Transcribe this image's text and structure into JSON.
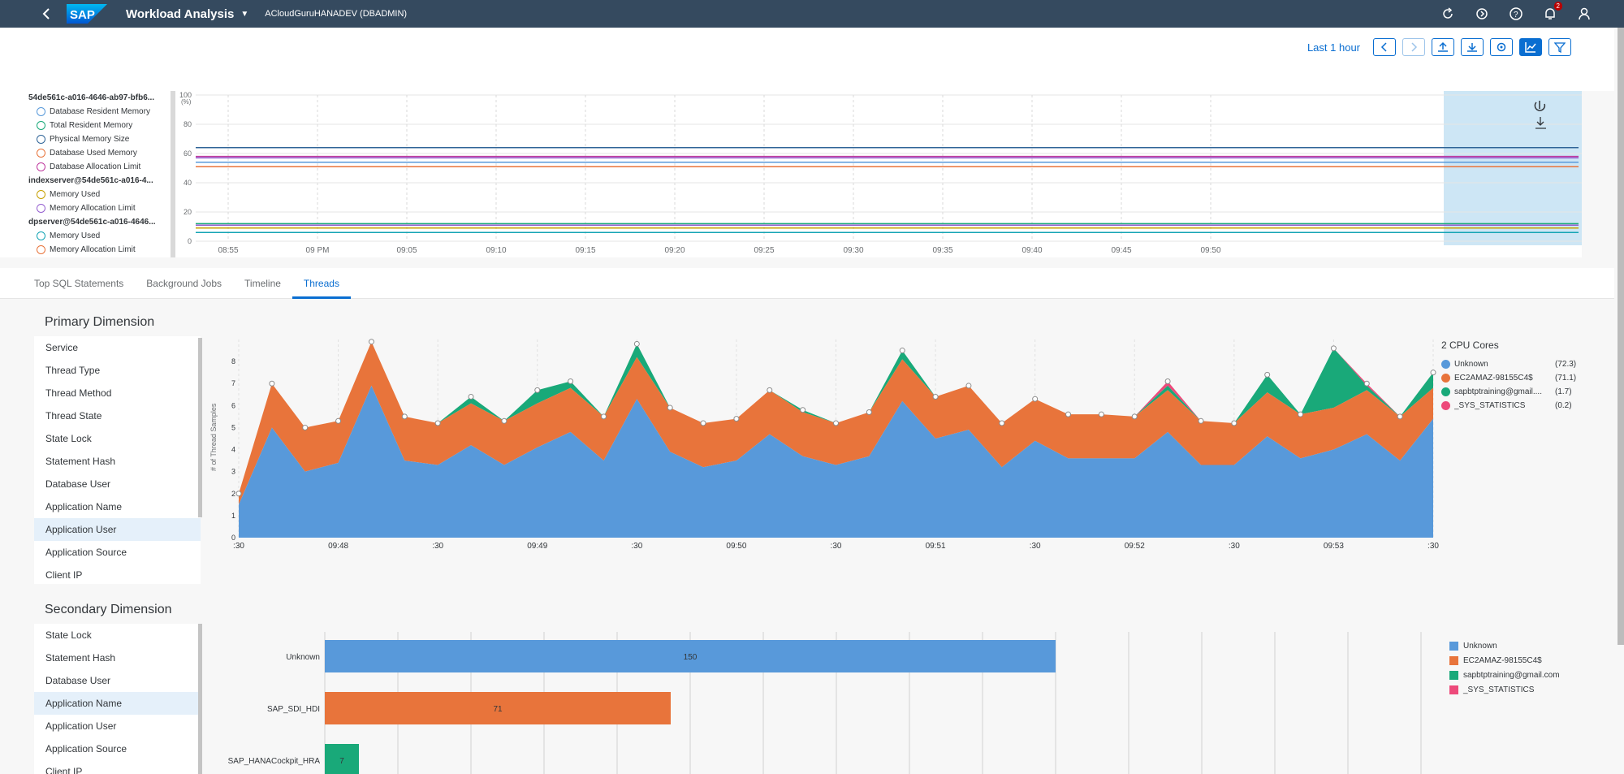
{
  "shell": {
    "app_title": "Workload Analysis",
    "system": "ACloudGuruHANADEV (DBADMIN)",
    "notifications_count": "2"
  },
  "toolbar": {
    "time_range": "Last 1 hour"
  },
  "monitor_legend": {
    "groups": [
      {
        "head": "54de561c-a016-4646-ab97-bfb6...",
        "items": [
          {
            "label": "Database Resident Memory",
            "color": "#5899da"
          },
          {
            "label": "Total Resident Memory",
            "color": "#19a979"
          },
          {
            "label": "Physical Memory Size",
            "color": "#2f6497"
          },
          {
            "label": "Database Used Memory",
            "color": "#e8743b"
          },
          {
            "label": "Database Allocation Limit",
            "color": "#bf399e"
          }
        ]
      },
      {
        "head": "indexserver@54de561c-a016-4...",
        "items": [
          {
            "label": "Memory Used",
            "color": "#c7a000"
          },
          {
            "label": "Memory Allocation Limit",
            "color": "#945ecf"
          }
        ]
      },
      {
        "head": "dpserver@54de561c-a016-4646...",
        "items": [
          {
            "label": "Memory Used",
            "color": "#13a4b4"
          },
          {
            "label": "Memory Allocation Limit",
            "color": "#e8743b"
          }
        ]
      }
    ]
  },
  "monitor_chart": {
    "y_unit": "(%)",
    "y_ticks": [
      "100",
      "80",
      "60",
      "40",
      "20",
      "0"
    ],
    "x_ticks": [
      "08:55",
      "09 PM",
      "09:05",
      "09:10",
      "09:15",
      "09:20",
      "09:25",
      "09:30",
      "09:35",
      "09:40",
      "09:45",
      "09:50"
    ]
  },
  "tabs": [
    "Top SQL Statements",
    "Background Jobs",
    "Timeline",
    "Threads"
  ],
  "primary": {
    "title": "Primary Dimension",
    "items": [
      "Service",
      "Thread Type",
      "Thread Method",
      "Thread State",
      "State Lock",
      "Statement Hash",
      "Database User",
      "Application Name",
      "Application User",
      "Application Source",
      "Client IP"
    ],
    "selected": "Application User"
  },
  "secondary": {
    "title": "Secondary Dimension",
    "items": [
      "State Lock",
      "Statement Hash",
      "Database User",
      "Application Name",
      "Application User",
      "Application Source",
      "Client IP"
    ],
    "selected": "Application Name"
  },
  "cpu_legend": {
    "title": "2 CPU Cores",
    "items": [
      {
        "name": "Unknown",
        "value": "(72.3)",
        "color": "#5899da"
      },
      {
        "name": "EC2AMAZ-98155C4$",
        "value": "(71.1)",
        "color": "#e8743b"
      },
      {
        "name": "sapbtptraining@gmail....",
        "value": "(1.7)",
        "color": "#19a979"
      },
      {
        "name": "_SYS_STATISTICS",
        "value": "(0.2)",
        "color": "#ed4a7b"
      }
    ]
  },
  "chart_data": [
    {
      "type": "line",
      "title": "",
      "ylabel": "(%)",
      "ylim": [
        0,
        100
      ],
      "x": [
        "08:55",
        "09 PM",
        "09:05",
        "09:10",
        "09:15",
        "09:20",
        "09:25",
        "09:30",
        "09:35",
        "09:40",
        "09:45",
        "09:50"
      ],
      "series": [
        {
          "name": "Physical Memory Size",
          "value": 64,
          "color": "#2f6497"
        },
        {
          "name": "Database Allocation Limit",
          "value": 58,
          "color": "#bf399e"
        },
        {
          "name": "Memory Allocation Limit",
          "value": 57,
          "color": "#945ecf"
        },
        {
          "name": "Database Resident Memory",
          "value": 54,
          "color": "#5899da"
        },
        {
          "name": "Database Used Memory",
          "value": 51,
          "color": "#e8743b"
        },
        {
          "name": "Total Resident Memory",
          "value": 12,
          "color": "#19a979"
        },
        {
          "name": "Memory Used",
          "value": 11,
          "color": "#945ecf"
        },
        {
          "name": "Memory Used",
          "value": 9,
          "color": "#c7a000"
        },
        {
          "name": "Memory Used",
          "value": 6,
          "color": "#13a4b4"
        }
      ]
    },
    {
      "type": "area",
      "title": "2 CPU Cores",
      "ylabel": "# of Thread Samples",
      "ylim": [
        0,
        9
      ],
      "x_ticks": [
        ":30",
        "09:48",
        ":30",
        "09:49",
        ":30",
        "09:50",
        ":30",
        "09:51",
        ":30",
        "09:52",
        ":30",
        "09:53",
        ":30"
      ],
      "series": [
        {
          "name": "Unknown",
          "color": "#5899da",
          "values": [
            1.5,
            5,
            3,
            3.4,
            6.9,
            3.5,
            3.3,
            4.2,
            3.3,
            4.1,
            4.8,
            3.5,
            6.3,
            3.9,
            3.2,
            3.5,
            4.7,
            3.7,
            3.3,
            3.7,
            6.2,
            4.5,
            4.9,
            3.2,
            4.4,
            3.6,
            3.6,
            3.6,
            4.8,
            3.3,
            3.3,
            4.6,
            3.6,
            4,
            4.7,
            3.5,
            5.4
          ]
        },
        {
          "name": "EC2AMAZ-98155C4$",
          "color": "#e8743b",
          "values": [
            0.5,
            2,
            2,
            1.9,
            2,
            2,
            1.9,
            1.9,
            2,
            2,
            2,
            2,
            1.9,
            2,
            2,
            1.9,
            2,
            2,
            1.9,
            2,
            1.9,
            1.9,
            2,
            2,
            1.9,
            2,
            2,
            1.9,
            1.9,
            2,
            1.9,
            2,
            2,
            1.9,
            2,
            2,
            1.4
          ]
        },
        {
          "name": "sapbtptraining@gmail.com",
          "color": "#19a979",
          "values": [
            0,
            0,
            0,
            0,
            0,
            0,
            0,
            0.3,
            0,
            0.6,
            0.3,
            0,
            0.6,
            0,
            0,
            0,
            0,
            0.1,
            0,
            0,
            0.4,
            0,
            0,
            0,
            0,
            0,
            0,
            0,
            0.2,
            0,
            0,
            0.8,
            0,
            2.7,
            0.2,
            0,
            0.7
          ]
        },
        {
          "name": "_SYS_STATISTICS",
          "color": "#ed4a7b",
          "values": [
            0,
            0,
            0,
            0,
            0,
            0,
            0,
            0,
            0,
            0,
            0,
            0,
            0,
            0,
            0,
            0,
            0,
            0,
            0,
            0,
            0,
            0,
            0,
            0,
            0,
            0,
            0,
            0,
            0.2,
            0,
            0,
            0,
            0,
            0,
            0.1,
            0,
            0
          ]
        }
      ]
    },
    {
      "type": "bar",
      "orientation": "horizontal",
      "categories": [
        "Unknown",
        "SAP_SDI_HDI",
        "SAP_HANACockpit_HRA"
      ],
      "values": [
        150,
        71,
        7
      ],
      "colors": [
        "#5899da",
        "#e8743b",
        "#19a979"
      ],
      "xlim": [
        0,
        225
      ],
      "legend": [
        "Unknown",
        "EC2AMAZ-98155C4$",
        "sapbtptraining@gmail.com",
        "_SYS_STATISTICS"
      ]
    }
  ]
}
